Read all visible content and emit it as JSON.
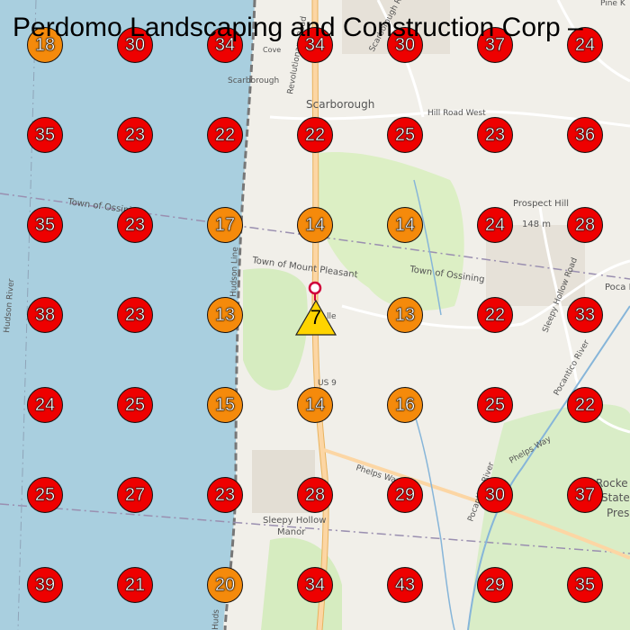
{
  "title": "Perdomo Landscaping and Construction Corp –",
  "colors": {
    "high": "#ee0000",
    "mid": "#f58a0b",
    "origin": "#ffd400",
    "water": "#a9cfdf",
    "park": "#d6ecc0",
    "golf": "#dcefc4"
  },
  "origin": {
    "value": "7",
    "shape": "triangle-warning-icon"
  },
  "labels": {
    "scarborough_area": "Scarborough",
    "scarborough_station": "Scarborough",
    "scarborough_cove": "Cove",
    "road_revolutionary": "Revolutionary Road",
    "road_scarborough": "Scarborough Road",
    "road_hill_west": "Hill Road West",
    "road_pine": "Pine K",
    "town_ossining_w": "Town of Ossining",
    "town_mount_pleasant": "Town of Mount Pleasant",
    "town_ossining_e": "Town of Ossining",
    "prospect_hill": "Prospect Hill",
    "prospect_elev": "148 m",
    "hudson_river": "Hudson River",
    "hudson_line": "Hudson Line",
    "hudson_line_b": "Huds",
    "sleepy_hollow_road": "Sleepy Hollow Road",
    "pocantico_river": "Pocantico River",
    "pocantico_river_b": "Pocantico River",
    "pocantico_lake": "Poca Lake P",
    "phelps_way": "Phelps Way",
    "phelps_way_b": "Phelps Way",
    "us9": "US 9",
    "ardsley_stub": "A",
    "ardsley_tail": "lle",
    "sleepy_hollow_manor_1": "Sleepy Hollow",
    "sleepy_hollow_manor_2": "Manor",
    "rockefeller_1": "Rocke",
    "rockefeller_2": "State",
    "rockefeller_3": "Pres"
  },
  "grid": [
    [
      "18",
      "30",
      "34",
      "34",
      "30",
      "37",
      "24"
    ],
    [
      "35",
      "23",
      "22",
      "22",
      "25",
      "23",
      "36"
    ],
    [
      "35",
      "23",
      "17",
      "14",
      "14",
      "24",
      "28"
    ],
    [
      "38",
      "23",
      "13",
      "",
      "13",
      "22",
      "33"
    ],
    [
      "24",
      "25",
      "15",
      "14",
      "16",
      "25",
      "22"
    ],
    [
      "25",
      "27",
      "23",
      "28",
      "29",
      "30",
      "37"
    ],
    [
      "39",
      "21",
      "20",
      "34",
      "43",
      "29",
      "35"
    ]
  ],
  "tiers": [
    [
      "orange",
      "red",
      "red",
      "red",
      "red",
      "red",
      "red"
    ],
    [
      "red",
      "red",
      "red",
      "red",
      "red",
      "red",
      "red"
    ],
    [
      "red",
      "red",
      "orange",
      "orange",
      "orange",
      "red",
      "red"
    ],
    [
      "red",
      "red",
      "orange",
      "",
      "orange",
      "red",
      "red"
    ],
    [
      "red",
      "red",
      "orange",
      "orange",
      "orange",
      "red",
      "red"
    ],
    [
      "red",
      "red",
      "red",
      "red",
      "red",
      "red",
      "red"
    ],
    [
      "red",
      "red",
      "orange",
      "red",
      "red",
      "red",
      "red"
    ]
  ]
}
